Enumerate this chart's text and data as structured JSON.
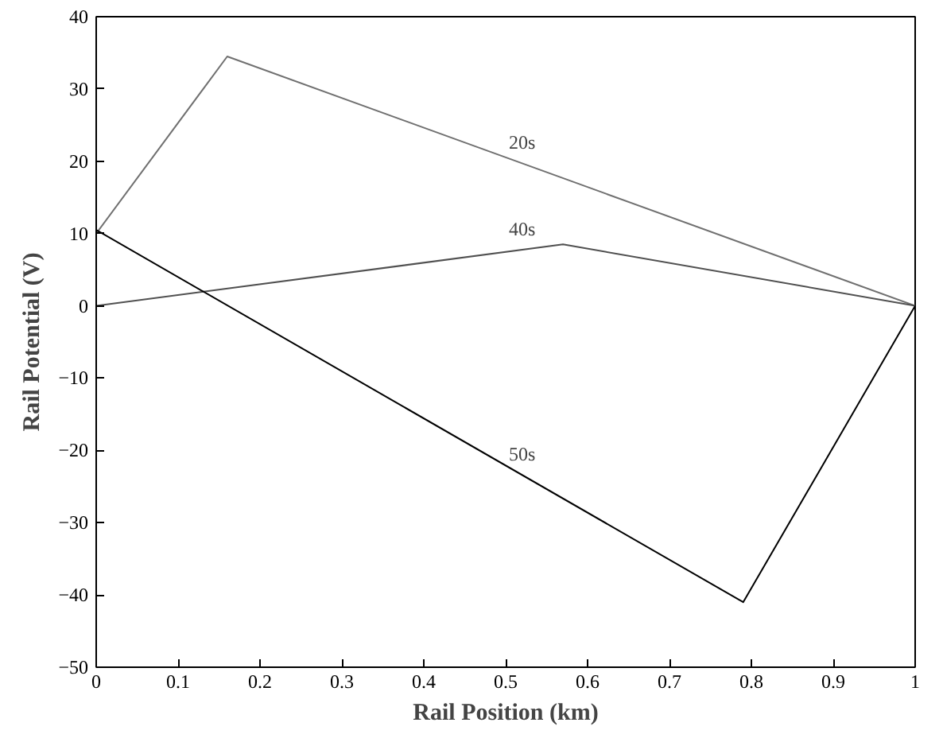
{
  "chart_data": {
    "type": "line",
    "xlabel": "Rail Position (km)",
    "ylabel": "Rail Potential (V)",
    "xlim": [
      0,
      1
    ],
    "ylim": [
      -50,
      40
    ],
    "xticks": [
      0,
      0.1,
      0.2,
      0.3,
      0.4,
      0.5,
      0.6,
      0.7,
      0.8,
      0.9,
      1
    ],
    "yticks": [
      -50,
      -40,
      -30,
      -20,
      -10,
      0,
      10,
      20,
      30,
      40
    ],
    "grid": false,
    "series": [
      {
        "name": "20s",
        "x": [
          0,
          0.16,
          1
        ],
        "values": [
          10,
          34.5,
          0
        ],
        "color": "#707070"
      },
      {
        "name": "40s",
        "x": [
          0,
          0.57,
          1
        ],
        "values": [
          0,
          8.5,
          0
        ],
        "color": "#505050"
      },
      {
        "name": "50s",
        "x": [
          0,
          0.79,
          1
        ],
        "values": [
          10.5,
          -41,
          0
        ],
        "color": "#000000"
      }
    ]
  }
}
